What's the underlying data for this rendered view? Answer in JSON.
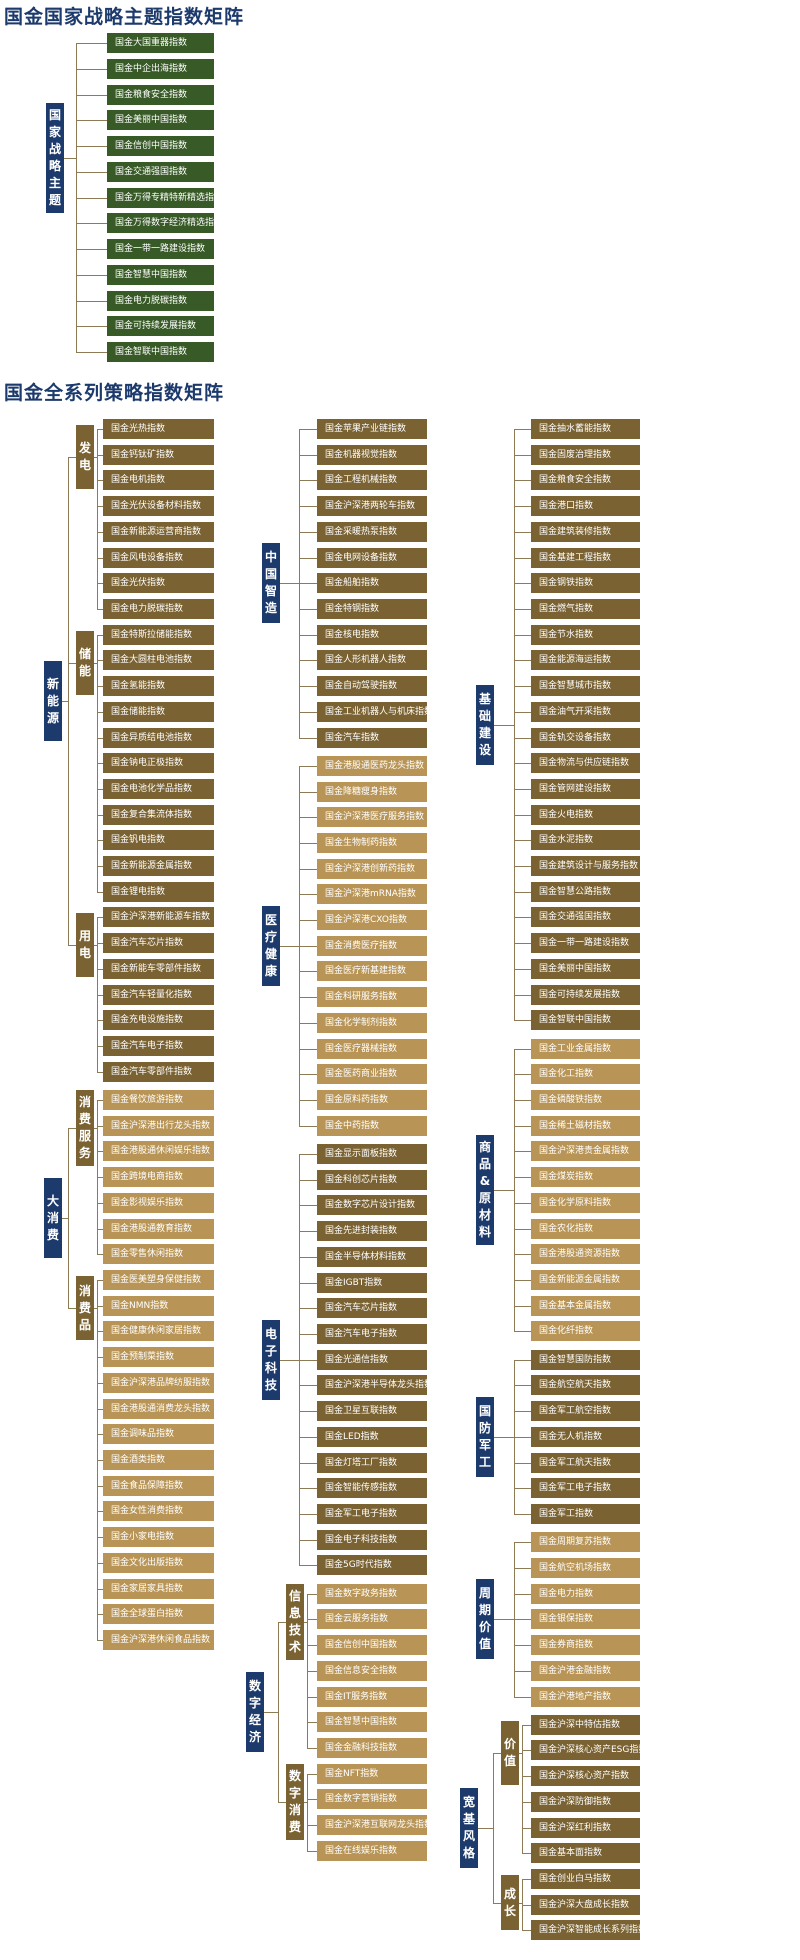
{
  "sections": [
    {
      "title": "国金国家战略主题指数矩阵"
    },
    {
      "title": "国金全系列策略指数矩阵"
    }
  ],
  "strategic": {
    "label": "国家战略主题",
    "items": [
      "国金大国重器指数",
      "国金中企出海指数",
      "国金粮食安全指数",
      "国金美丽中国指数",
      "国金信创中国指数",
      "国金交通强国指数",
      "国金万得专精特新精选指数",
      "国金万得数字经济精选指数",
      "国金一带一路建设指数",
      "国金智慧中国指数",
      "国金电力脱碳指数",
      "国金可持续发展指数",
      "国金智联中国指数"
    ]
  },
  "columns": [
    {
      "groups": [
        {
          "label": "新能源",
          "subs": [
            {
              "label": "发电",
              "items": [
                "国金光热指数",
                "国金钙钛矿指数",
                "国金电机指数",
                "国金光伏设备材料指数",
                "国金新能源运营商指数",
                "国金风电设备指数",
                "国金光伏指数",
                "国金电力脱碳指数"
              ]
            },
            {
              "label": "储能",
              "items": [
                "国金特斯拉储能指数",
                "国金大圆柱电池指数",
                "国金氢能指数",
                "国金储能指数",
                "国金异质结电池指数",
                "国金钠电正极指数",
                "国金电池化学品指数",
                "国金复合集流体指数",
                "国金钒电指数",
                "国金新能源金属指数",
                "国金锂电指数"
              ]
            },
            {
              "label": "用电",
              "items": [
                "国金沪深港新能源车指数",
                "国金汽车芯片指数",
                "国金新能车零部件指数",
                "国金汽车轻量化指数",
                "国金充电设施指数",
                "国金汽车电子指数",
                "国金汽车零部件指数"
              ]
            }
          ]
        },
        {
          "label": "大消费",
          "subs": [
            {
              "label": "消费服务",
              "items": [
                "国金餐饮旅游指数",
                "国金沪深港出行龙头指数",
                "国金港股通休闲娱乐指数",
                "国金跨境电商指数",
                "国金影视娱乐指数",
                "国金港股通教育指数",
                "国金零售休闲指数"
              ]
            },
            {
              "label": "消费品",
              "items": [
                "国金医美塑身保健指数",
                "国金NMN指数",
                "国金健康休闲家居指数",
                "国金预制菜指数",
                "国金沪深港品牌纺服指数",
                "国金港股通消费龙头指数",
                "国金调味品指数",
                "国金酒类指数",
                "国金食品保障指数",
                "国金女性消费指数",
                "国金小家电指数",
                "国金文化出版指数",
                "国金家居家具指数",
                "国金全球蛋白指数",
                "国金沪深港休闲食品指数"
              ]
            }
          ]
        }
      ]
    },
    {
      "groups": [
        {
          "label": "中国智造",
          "items": [
            "国金苹果产业链指数",
            "国金机器视觉指数",
            "国金工程机械指数",
            "国金沪深港两轮车指数",
            "国金采暖热泵指数",
            "国金电网设备指数",
            "国金船舶指数",
            "国金特钢指数",
            "国金核电指数",
            "国金人形机器人指数",
            "国金自动驾驶指数",
            "国金工业机器人与机床指数",
            "国金汽车指数"
          ]
        },
        {
          "label": "医疗健康",
          "items": [
            "国金港股通医药龙头指数",
            "国金降糖瘦身指数",
            "国金沪深港医疗服务指数",
            "国金生物制药指数",
            "国金沪深港创新药指数",
            "国金沪深港mRNA指数",
            "国金沪深港CXO指数",
            "国金消费医疗指数",
            "国金医疗新基建指数",
            "国金科研服务指数",
            "国金化学制剂指数",
            "国金医疗器械指数",
            "国金医药商业指数",
            "国金原料药指数",
            "国金中药指数"
          ]
        },
        {
          "label": "电子科技",
          "items": [
            "国金显示面板指数",
            "国金科创芯片指数",
            "国金数字芯片设计指数",
            "国金先进封装指数",
            "国金半导体材料指数",
            "国金IGBT指数",
            "国金汽车芯片指数",
            "国金汽车电子指数",
            "国金光通信指数",
            "国金沪深港半导体龙头指数",
            "国金卫星互联指数",
            "国金LED指数",
            "国金灯塔工厂指数",
            "国金智能传感指数",
            "国金军工电子指数",
            "国金电子科技指数",
            "国金5G时代指数"
          ]
        },
        {
          "label": "数字经济",
          "subs": [
            {
              "label": "信息技术",
              "items": [
                "国金数字政务指数",
                "国金云服务指数",
                "国金信创中国指数",
                "国金信息安全指数",
                "国金IT服务指数",
                "国金智慧中国指数",
                "国金金融科技指数"
              ]
            },
            {
              "label": "数字消费",
              "items": [
                "国金NFT指数",
                "国金数字营销指数",
                "国金沪深港互联网龙头指数",
                "国金在线娱乐指数"
              ]
            }
          ]
        }
      ]
    },
    {
      "groups": [
        {
          "label": "基础建设",
          "items": [
            "国金抽水蓄能指数",
            "国金固废治理指数",
            "国金粮食安全指数",
            "国金港口指数",
            "国金建筑装修指数",
            "国金基建工程指数",
            "国金钢铁指数",
            "国金燃气指数",
            "国金节水指数",
            "国金能源海运指数",
            "国金智慧城市指数",
            "国金油气开采指数",
            "国金轨交设备指数",
            "国金物流与供应链指数",
            "国金管网建设指数",
            "国金火电指数",
            "国金水泥指数",
            "国金建筑设计与服务指数",
            "国金智慧公路指数",
            "国金交通强国指数",
            "国金一带一路建设指数",
            "国金美丽中国指数",
            "国金可持续发展指数",
            "国金智联中国指数"
          ]
        },
        {
          "label": "商品&原材料",
          "items": [
            "国金工业金属指数",
            "国金化工指数",
            "国金磷酸铁指数",
            "国金稀土磁材指数",
            "国金沪深港贵金属指数",
            "国金煤炭指数",
            "国金化学原料指数",
            "国金农化指数",
            "国金港股通资源指数",
            "国金新能源金属指数",
            "国金基本金属指数",
            "国金化纤指数"
          ]
        },
        {
          "label": "国防军工",
          "items": [
            "国金智慧国防指数",
            "国金航空航天指数",
            "国金军工航空指数",
            "国金无人机指数",
            "国金军工航天指数",
            "国金军工电子指数",
            "国金军工指数"
          ]
        },
        {
          "label": "周期价值",
          "items": [
            "国金周期复苏指数",
            "国金航空机场指数",
            "国金电力指数",
            "国金银保指数",
            "国金券商指数",
            "国金沪港金融指数",
            "国金沪港地产指数"
          ]
        },
        {
          "label": "宽基风格",
          "subs": [
            {
              "label": "价值",
              "items": [
                "国金沪深中特估指数",
                "国金沪深核心资产ESG指数",
                "国金沪深核心资产指数",
                "国金沪深防御指数",
                "国金沪深红利指数",
                "国金基本面指数"
              ]
            },
            {
              "label": "成长",
              "items": [
                "国金创业白马指数",
                "国金沪深大盘成长指数",
                "国金沪深智能成长系列指数"
              ]
            }
          ]
        }
      ]
    }
  ]
}
